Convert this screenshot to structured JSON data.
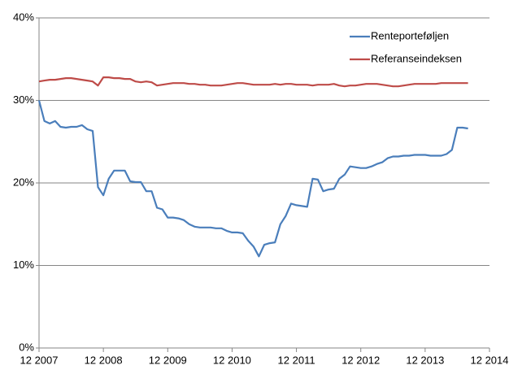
{
  "chart_data": {
    "type": "line",
    "x": [
      "2007-12",
      "2008-01",
      "2008-02",
      "2008-03",
      "2008-04",
      "2008-05",
      "2008-06",
      "2008-07",
      "2008-08",
      "2008-09",
      "2008-10",
      "2008-11",
      "2008-12",
      "2009-01",
      "2009-02",
      "2009-03",
      "2009-04",
      "2009-05",
      "2009-06",
      "2009-07",
      "2009-08",
      "2009-09",
      "2009-10",
      "2009-11",
      "2009-12",
      "2010-01",
      "2010-02",
      "2010-03",
      "2010-04",
      "2010-05",
      "2010-06",
      "2010-07",
      "2010-08",
      "2010-09",
      "2010-10",
      "2010-11",
      "2010-12",
      "2011-01",
      "2011-02",
      "2011-03",
      "2011-04",
      "2011-05",
      "2011-06",
      "2011-07",
      "2011-08",
      "2011-09",
      "2011-10",
      "2011-11",
      "2011-12",
      "2012-01",
      "2012-02",
      "2012-03",
      "2012-04",
      "2012-05",
      "2012-06",
      "2012-07",
      "2012-08",
      "2012-09",
      "2012-10",
      "2012-11",
      "2012-12",
      "2013-01",
      "2013-02",
      "2013-03",
      "2013-04",
      "2013-05",
      "2013-06",
      "2013-07",
      "2013-08",
      "2013-09",
      "2013-10",
      "2013-11",
      "2013-12",
      "2014-01",
      "2014-02",
      "2014-03",
      "2014-04",
      "2014-05",
      "2014-06",
      "2014-07",
      "2014-08"
    ],
    "series": [
      {
        "name": "Renteporteføljen",
        "color": "#4a7ebb",
        "values": [
          30,
          27.5,
          27.2,
          27.5,
          26.8,
          26.7,
          26.8,
          26.8,
          27,
          26.5,
          26.3,
          19.5,
          18.5,
          20.5,
          21.5,
          21.5,
          21.5,
          20.2,
          20.1,
          20.1,
          19,
          19,
          17,
          16.8,
          15.8,
          15.8,
          15.7,
          15.5,
          15,
          14.7,
          14.6,
          14.6,
          14.6,
          14.5,
          14.5,
          14.2,
          14,
          14,
          13.9,
          13,
          12.3,
          11.1,
          12.5,
          12.7,
          12.8,
          15,
          16,
          17.5,
          17.3,
          17.2,
          17.1,
          20.5,
          20.4,
          19,
          19.2,
          19.3,
          20.5,
          21,
          22,
          21.9,
          21.8,
          21.8,
          22,
          22.3,
          22.5,
          23,
          23.2,
          23.2,
          23.3,
          23.3,
          23.4,
          23.4,
          23.4,
          23.3,
          23.3,
          23.3,
          23.5,
          24,
          26.7,
          26.7,
          26.6
        ]
      },
      {
        "name": "Referanseindeksen",
        "color": "#be4b48",
        "values": [
          32.3,
          32.4,
          32.5,
          32.5,
          32.6,
          32.7,
          32.7,
          32.6,
          32.5,
          32.4,
          32.3,
          31.8,
          32.8,
          32.8,
          32.7,
          32.7,
          32.6,
          32.6,
          32.3,
          32.2,
          32.3,
          32.2,
          31.8,
          31.9,
          32,
          32.1,
          32.1,
          32.1,
          32,
          32,
          31.9,
          31.9,
          31.8,
          31.8,
          31.8,
          31.9,
          32,
          32.1,
          32.1,
          32,
          31.9,
          31.9,
          31.9,
          31.9,
          32,
          31.9,
          32,
          32,
          31.9,
          31.9,
          31.9,
          31.8,
          31.9,
          31.9,
          31.9,
          32,
          31.8,
          31.7,
          31.8,
          31.8,
          31.9,
          32,
          32,
          32,
          31.9,
          31.8,
          31.7,
          31.7,
          31.8,
          31.9,
          32,
          32,
          32,
          32,
          32,
          32.1,
          32.1,
          32.1,
          32.1,
          32.1,
          32.1
        ]
      }
    ],
    "xlim": [
      "2007-12",
      "2014-12"
    ],
    "xticks": [
      {
        "value": "2007-12",
        "label": "12 2007"
      },
      {
        "value": "2008-12",
        "label": "12 2008"
      },
      {
        "value": "2009-12",
        "label": "12 2009"
      },
      {
        "value": "2010-12",
        "label": "12 2010"
      },
      {
        "value": "2011-12",
        "label": "12 2011"
      },
      {
        "value": "2012-12",
        "label": "12 2012"
      },
      {
        "value": "2013-12",
        "label": "12 2013"
      },
      {
        "value": "2014-12",
        "label": "12 2014"
      }
    ],
    "ylim": [
      0,
      40
    ],
    "yticks": [
      {
        "value": 0,
        "label": "0%"
      },
      {
        "value": 10,
        "label": "10%"
      },
      {
        "value": 20,
        "label": "20%"
      },
      {
        "value": 30,
        "label": "30%"
      },
      {
        "value": 40,
        "label": "40%"
      }
    ],
    "grid": true,
    "legend": "top-right"
  }
}
